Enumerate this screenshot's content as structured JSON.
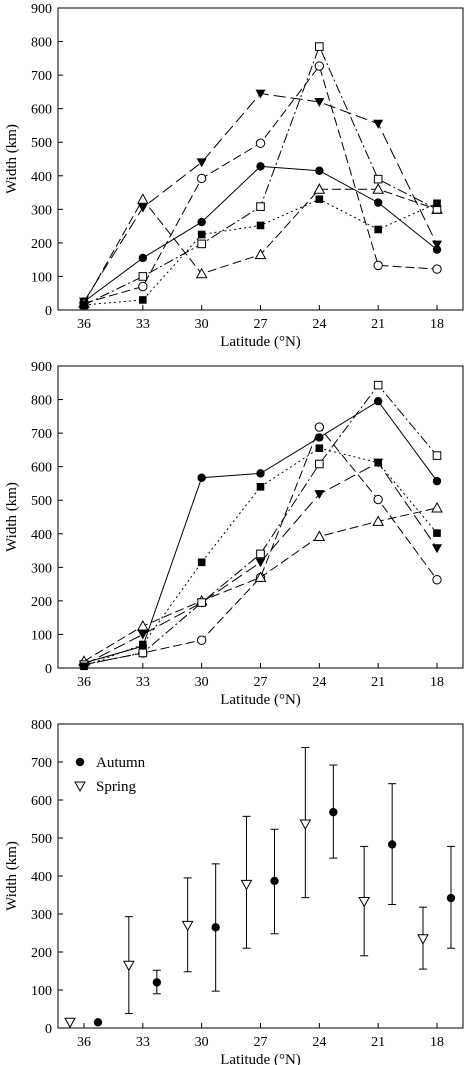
{
  "chart_data": [
    {
      "type": "line",
      "xlabel": "Latitude (°N)",
      "ylabel": "Width (km)",
      "x": [
        36,
        33,
        30,
        27,
        24,
        21,
        18
      ],
      "x_reversed": true,
      "ylim": [
        0,
        900
      ],
      "yticks": [
        0,
        100,
        200,
        300,
        400,
        500,
        600,
        700,
        800,
        900
      ],
      "grid": false,
      "series": [
        {
          "marker": "filled-circle",
          "dash": "solid",
          "values": [
            25,
            155,
            262,
            428,
            415,
            320,
            180
          ]
        },
        {
          "marker": "open-circle",
          "dash": "long-dash",
          "values": [
            20,
            70,
            392,
            497,
            727,
            133,
            122
          ]
        },
        {
          "marker": "filled-triangle-down",
          "dash": "dash",
          "values": [
            25,
            305,
            440,
            645,
            620,
            555,
            195
          ]
        },
        {
          "marker": "open-triangle-up",
          "dash": "long-dash",
          "values": [
            20,
            330,
            108,
            165,
            360,
            360,
            300
          ]
        },
        {
          "marker": "open-square",
          "dash": "dash-dot",
          "values": [
            15,
            100,
            197,
            308,
            785,
            390,
            300
          ]
        },
        {
          "marker": "filled-square",
          "dash": "dot",
          "values": [
            15,
            30,
            225,
            252,
            330,
            240,
            318
          ]
        }
      ]
    },
    {
      "type": "line",
      "xlabel": "Latitude (°N)",
      "ylabel": "Width (km)",
      "x": [
        36,
        33,
        30,
        27,
        24,
        21,
        18
      ],
      "x_reversed": true,
      "ylim": [
        0,
        900
      ],
      "yticks": [
        0,
        100,
        200,
        300,
        400,
        500,
        600,
        700,
        800,
        900
      ],
      "grid": false,
      "series": [
        {
          "marker": "filled-circle",
          "dash": "solid",
          "values": [
            15,
            65,
            567,
            580,
            687,
            795,
            557
          ]
        },
        {
          "marker": "open-circle",
          "dash": "long-dash",
          "values": [
            10,
            45,
            83,
            270,
            718,
            502,
            263
          ]
        },
        {
          "marker": "filled-triangle-down",
          "dash": "dash",
          "values": [
            10,
            100,
            195,
            315,
            518,
            612,
            357
          ]
        },
        {
          "marker": "open-triangle-up",
          "dash": "long-dash",
          "values": [
            20,
            125,
            200,
            270,
            392,
            437,
            477
          ]
        },
        {
          "marker": "open-square",
          "dash": "dash-dot",
          "values": [
            10,
            45,
            195,
            340,
            608,
            843,
            633
          ]
        },
        {
          "marker": "filled-square",
          "dash": "dot",
          "values": [
            5,
            70,
            315,
            540,
            655,
            612,
            402
          ]
        }
      ]
    },
    {
      "type": "scatter",
      "xlabel": "Latitude (°N)",
      "ylabel": "Width (km)",
      "x": [
        36,
        33,
        30,
        27,
        24,
        21,
        18
      ],
      "x_reversed": true,
      "ylim": [
        0,
        800
      ],
      "yticks": [
        0,
        100,
        200,
        300,
        400,
        500,
        600,
        700,
        800
      ],
      "grid": false,
      "legend_position": "top-left",
      "error_bars": true,
      "series": [
        {
          "name": "Autumn",
          "marker": "filled-circle",
          "values": [
            15,
            120,
            265,
            387,
            568,
            483,
            342
          ],
          "lower": [
            15,
            90,
            97,
            248,
            447,
            325,
            210
          ],
          "upper": [
            15,
            152,
            432,
            523,
            692,
            643,
            478
          ]
        },
        {
          "name": "Spring",
          "marker": "open-triangle-down",
          "values": [
            15,
            165,
            270,
            378,
            537,
            333,
            235
          ],
          "lower": [
            15,
            38,
            148,
            210,
            343,
            190,
            155
          ],
          "upper": [
            15,
            293,
            395,
            557,
            738,
            478,
            318
          ]
        }
      ]
    }
  ]
}
